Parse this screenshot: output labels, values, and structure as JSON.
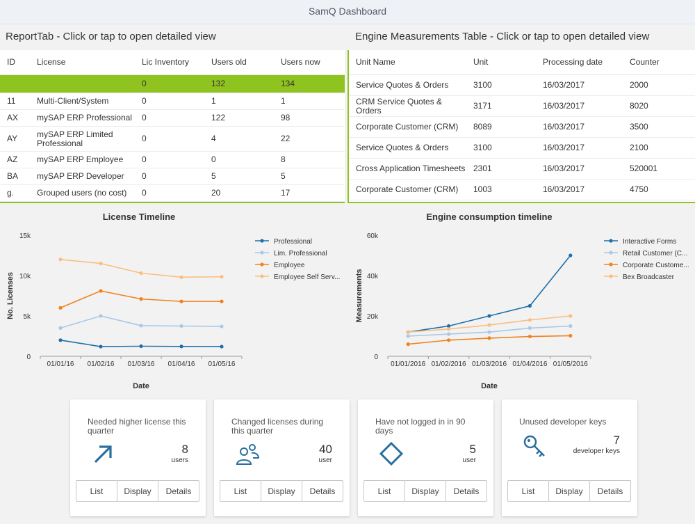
{
  "header": {
    "title": "SamQ Dashboard"
  },
  "report_tab": {
    "title": "ReportTab - Click or tap to open detailed view",
    "columns": [
      "ID",
      "License",
      "Lic Inventory",
      "Users old",
      "Users now"
    ],
    "rows": [
      [
        "",
        "",
        "0",
        "132",
        "134"
      ],
      [
        "11",
        "Multi-Client/System",
        "0",
        "1",
        "1"
      ],
      [
        "AX",
        "mySAP ERP Professional",
        "0",
        "122",
        "98"
      ],
      [
        "AY",
        "mySAP ERP Limited Professional",
        "0",
        "4",
        "22"
      ],
      [
        "AZ",
        "mySAP ERP Employee",
        "0",
        "0",
        "8"
      ],
      [
        "BA",
        "mySAP ERP Developer",
        "0",
        "5",
        "5"
      ],
      [
        "g.",
        "Grouped users (no cost)",
        "0",
        "20",
        "17"
      ]
    ]
  },
  "engine_table": {
    "title": "Engine Measurements Table - Click or tap to open detailed view",
    "columns": [
      "Unit Name",
      "Unit",
      "Processing date",
      "Counter"
    ],
    "rows": [
      [
        "Service Quotes & Orders",
        "3100",
        "16/03/2017",
        "2000"
      ],
      [
        "CRM Service Quotes & Orders",
        "3171",
        "16/03/2017",
        "8020"
      ],
      [
        "Corporate Customer (CRM)",
        "8089",
        "16/03/2017",
        "3500"
      ],
      [
        "Service Quotes & Orders",
        "3100",
        "16/03/2017",
        "2100"
      ],
      [
        "Cross Application Timesheets",
        "2301",
        "16/03/2017",
        "520001"
      ],
      [
        "Corporate Customer (CRM)",
        "1003",
        "16/03/2017",
        "4750"
      ]
    ]
  },
  "chart_data": [
    {
      "type": "line",
      "title": "License Timeline",
      "xlabel": "Date",
      "ylabel": "No. Licenses",
      "x": [
        "01/01/16",
        "01/02/16",
        "01/03/16",
        "01/04/16",
        "01/05/16"
      ],
      "ylim": [
        0,
        15000
      ],
      "yticks": [
        0,
        5000,
        10000,
        15000
      ],
      "ytick_labels": [
        "0",
        "5k",
        "10k",
        "15k"
      ],
      "legend_position": "right",
      "series": [
        {
          "name": "Professional",
          "color": "#1f6fa8",
          "values": [
            2000,
            1200,
            1250,
            1220,
            1200
          ]
        },
        {
          "name": "Lim. Professional",
          "color": "#a9c8e8",
          "values": [
            3500,
            5000,
            3800,
            3750,
            3700
          ]
        },
        {
          "name": "Employee",
          "color": "#f0821e",
          "values": [
            6000,
            8100,
            7100,
            6800,
            6800
          ]
        },
        {
          "name": "Employee Self Serv...",
          "color": "#f9bf80",
          "values": [
            12000,
            11500,
            10300,
            9800,
            9850
          ]
        }
      ]
    },
    {
      "type": "line",
      "title": "Engine consumption timeline",
      "xlabel": "Date",
      "ylabel": "Measurements",
      "x": [
        "01/01/2016",
        "01/02/2016",
        "01/03/2016",
        "01/04/2016",
        "01/05/2016"
      ],
      "ylim": [
        0,
        60000
      ],
      "yticks": [
        0,
        20000,
        40000,
        60000
      ],
      "ytick_labels": [
        "0",
        "20k",
        "40k",
        "60k"
      ],
      "legend_position": "right",
      "series": [
        {
          "name": "Interactive Forms",
          "color": "#1f6fa8",
          "values": [
            12000,
            15000,
            20000,
            25000,
            50000
          ]
        },
        {
          "name": "Retail Customer (C...",
          "color": "#a9c8e8",
          "values": [
            10000,
            11000,
            12000,
            14000,
            15000
          ]
        },
        {
          "name": "Corporate Custome...",
          "color": "#f0821e",
          "values": [
            6000,
            8000,
            9000,
            9800,
            10200
          ]
        },
        {
          "name": "Bex Broadcaster",
          "color": "#f9bf80",
          "values": [
            12000,
            13500,
            15500,
            18000,
            20000
          ]
        }
      ]
    }
  ],
  "tiles": [
    {
      "title": "Needed higher license this quarter",
      "value": "8",
      "unit": "users",
      "icon": "arrow-up-right-icon",
      "buttons": [
        "List",
        "Display",
        "Details"
      ]
    },
    {
      "title": "Changed licenses during this quarter",
      "value": "40",
      "unit": "user",
      "icon": "users-icon",
      "buttons": [
        "List",
        "Display",
        "Details"
      ]
    },
    {
      "title": "Have not logged in in 90 days",
      "value": "5",
      "unit": "user",
      "icon": "diamond-icon",
      "buttons": [
        "List",
        "Display",
        "Details"
      ]
    },
    {
      "title": "Unused developer keys",
      "value": "7",
      "unit": "developer keys",
      "icon": "key-icon",
      "buttons": [
        "List",
        "Display",
        "Details"
      ]
    }
  ]
}
